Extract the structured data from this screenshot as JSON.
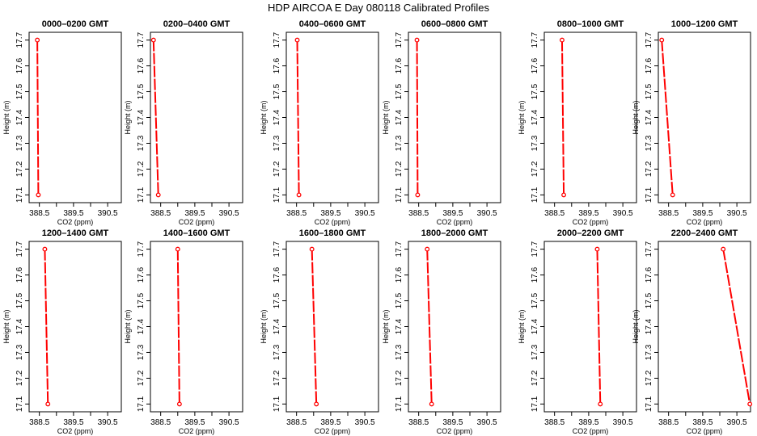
{
  "figure": {
    "title": "HDP  AIRCOA E  Day 080118  Calibrated Profiles"
  },
  "chart_data": {
    "type": "line",
    "xlabel": "CO2 (ppm)",
    "ylabel": "Height (m)",
    "xlim": [
      388.2,
      390.9
    ],
    "ylim": [
      17.07,
      17.73
    ],
    "x_ticks": [
      "388.5",
      "389.5",
      "390.5"
    ],
    "y_ticks": [
      "17.1",
      "17.2",
      "17.3",
      "17.4",
      "17.5",
      "17.6",
      "17.7"
    ],
    "x_tick_values": [
      388.5,
      389.0,
      389.5,
      390.0,
      390.5
    ],
    "y_tick_values": [
      17.1,
      17.2,
      17.3,
      17.4,
      17.5,
      17.6,
      17.7
    ],
    "line_color": "#ff0000",
    "marker_color": "#ff0000",
    "panels": [
      {
        "title": "0000–0200 GMT",
        "points": [
          {
            "x": 388.44,
            "y": 17.7
          },
          {
            "x": 388.47,
            "y": 17.1
          }
        ]
      },
      {
        "title": "0200–0400 GMT",
        "points": [
          {
            "x": 388.29,
            "y": 17.7
          },
          {
            "x": 388.43,
            "y": 17.1
          }
        ]
      },
      {
        "title": "0400–0600 GMT",
        "points": [
          {
            "x": 388.52,
            "y": 17.7
          },
          {
            "x": 388.57,
            "y": 17.1
          }
        ]
      },
      {
        "title": "0600–0800 GMT",
        "points": [
          {
            "x": 388.45,
            "y": 17.7
          },
          {
            "x": 388.47,
            "y": 17.1
          }
        ]
      },
      {
        "title": "0800–1000 GMT",
        "points": [
          {
            "x": 388.72,
            "y": 17.7
          },
          {
            "x": 388.77,
            "y": 17.1
          }
        ]
      },
      {
        "title": "1000–1200 GMT",
        "points": [
          {
            "x": 388.3,
            "y": 17.7
          },
          {
            "x": 388.62,
            "y": 17.1
          }
        ]
      },
      {
        "title": "1200–1400 GMT",
        "points": [
          {
            "x": 388.66,
            "y": 17.7
          },
          {
            "x": 388.75,
            "y": 17.1
          }
        ]
      },
      {
        "title": "1400–1600 GMT",
        "points": [
          {
            "x": 389.0,
            "y": 17.7
          },
          {
            "x": 389.05,
            "y": 17.1
          }
        ]
      },
      {
        "title": "1600–1800 GMT",
        "points": [
          {
            "x": 388.95,
            "y": 17.7
          },
          {
            "x": 389.08,
            "y": 17.1
          }
        ]
      },
      {
        "title": "1800–2000 GMT",
        "points": [
          {
            "x": 388.75,
            "y": 17.7
          },
          {
            "x": 388.88,
            "y": 17.1
          }
        ]
      },
      {
        "title": "2000–2200 GMT",
        "points": [
          {
            "x": 389.75,
            "y": 17.7
          },
          {
            "x": 389.84,
            "y": 17.1
          }
        ]
      },
      {
        "title": "2200–2400 GMT",
        "points": [
          {
            "x": 390.1,
            "y": 17.7
          },
          {
            "x": 390.88,
            "y": 17.1
          }
        ]
      }
    ]
  }
}
